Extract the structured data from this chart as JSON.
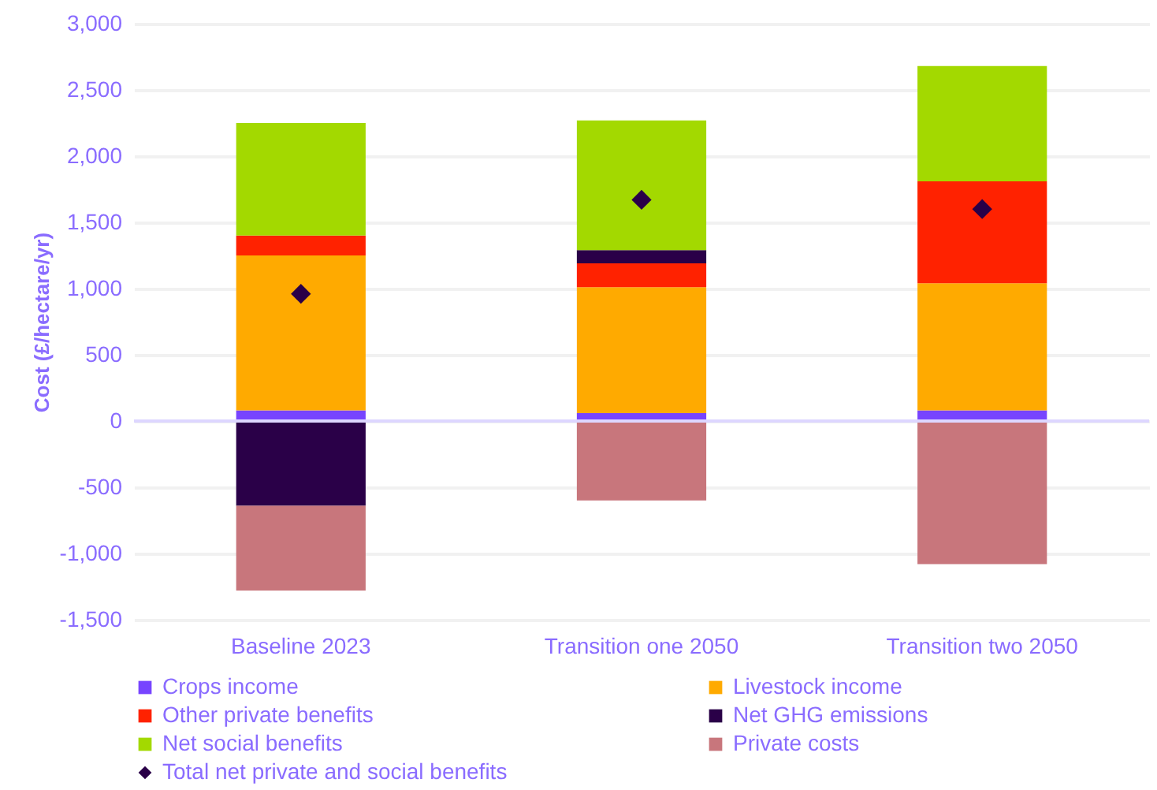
{
  "chart_data": {
    "type": "bar",
    "stacked": true,
    "ylabel": "Cost (£/hectare/yr)",
    "categories": [
      "Baseline 2023",
      "Transition one 2050",
      "Transition two 2050"
    ],
    "ylim": [
      -1500,
      3000
    ],
    "yticks": [
      {
        "value": -1500,
        "label": "-1,500"
      },
      {
        "value": -1000,
        "label": "-1,000"
      },
      -500,
      0,
      500,
      {
        "value": 1000,
        "label": "1,000"
      },
      {
        "value": 1500,
        "label": "1,500"
      },
      {
        "value": 2000,
        "label": "2,000"
      },
      {
        "value": 2500,
        "label": "2,500"
      },
      {
        "value": 3000,
        "label": "3,000"
      }
    ],
    "grid": "y",
    "legend": "bottom",
    "ref_lines": [
      {
        "axis": "y",
        "value": 0,
        "color": "#ddd6ff"
      }
    ],
    "marker": "diamond",
    "series": [
      {
        "name": "Crops income",
        "color": "#7744ff",
        "values": [
          80,
          60,
          80
        ]
      },
      {
        "name": "Livestock income",
        "color": "#ffaa00",
        "values": [
          1170,
          950,
          960
        ]
      },
      {
        "name": "Other private benefits",
        "color": "#ff2200",
        "values": [
          150,
          180,
          770
        ]
      },
      {
        "name": "Net GHG emissions",
        "color": "#2a0048",
        "values": [
          -640,
          100,
          null
        ]
      },
      {
        "name": "Net social benefits",
        "color": "#a3d900",
        "values": [
          850,
          980,
          870
        ]
      },
      {
        "name": "Private costs",
        "color": "#c8767c",
        "values": [
          -640,
          -600,
          -1080
        ]
      },
      {
        "name": "Total net private and social benefits",
        "type": "scatter",
        "color": "#2a0048",
        "values": [
          960,
          1670,
          1600
        ]
      }
    ]
  }
}
